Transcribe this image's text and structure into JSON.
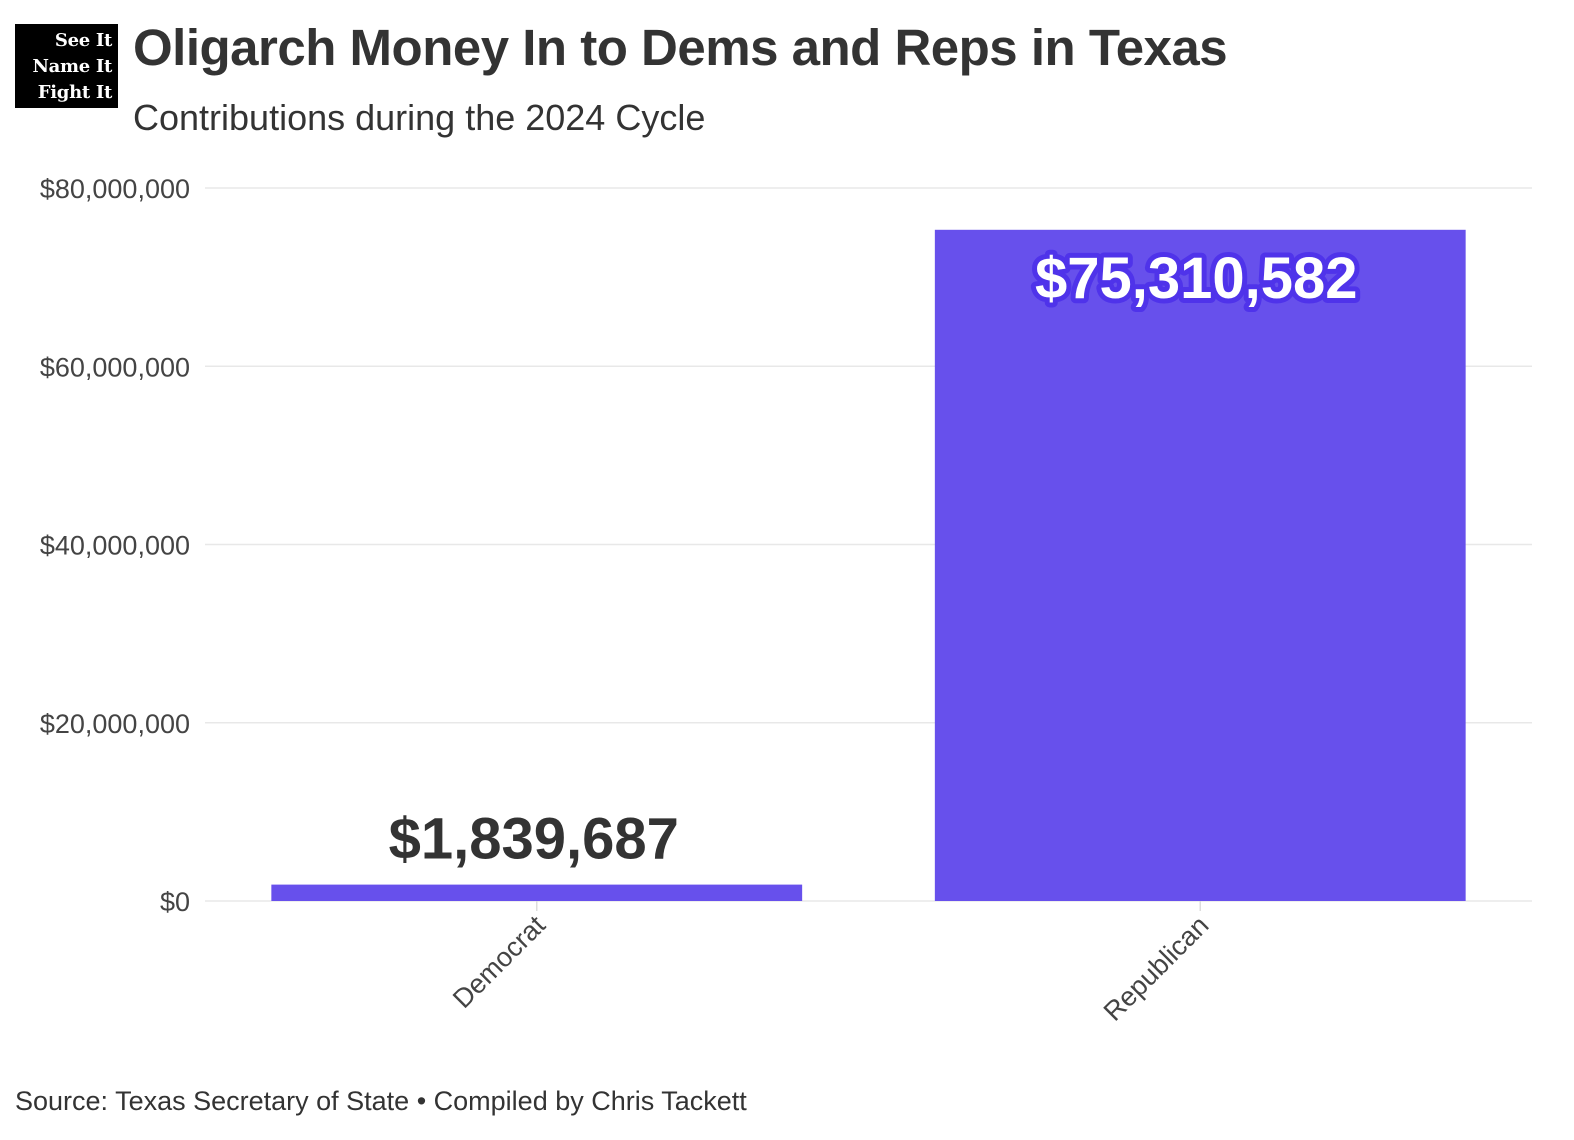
{
  "logo": {
    "lines": [
      "See It",
      "Name It",
      "Fight It"
    ]
  },
  "header": {
    "title": "Oligarch Money In to Dems and Reps in Texas",
    "subtitle": "Contributions during the 2024 Cycle"
  },
  "footer": {
    "source": "Source: Texas Secretary of State • Compiled by Chris Tackett"
  },
  "chart_data": {
    "type": "bar",
    "categories": [
      "Democrat",
      "Republican"
    ],
    "values": [
      1839687,
      75310582
    ],
    "value_labels": [
      "$1,839,687",
      "$75,310,582"
    ],
    "ylim": [
      0,
      80000000
    ],
    "yticks": [
      0,
      20000000,
      40000000,
      60000000,
      80000000
    ],
    "ytick_labels": [
      "$0",
      "$20,000,000",
      "$40,000,000",
      "$60,000,000",
      "$80,000,000"
    ],
    "xlabel": "",
    "ylabel": "",
    "grid": true,
    "colors": {
      "bar": "#6750ec",
      "label_dark": "#333333",
      "label_light": "#ffffff",
      "label_halo": "#4f33ea",
      "grid": "#e8e8e8"
    }
  }
}
